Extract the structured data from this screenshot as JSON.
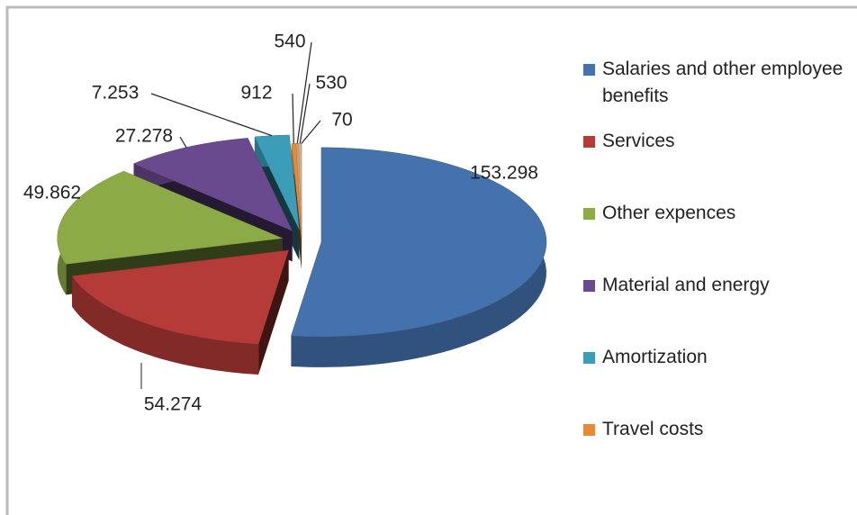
{
  "chart_data": {
    "type": "pie",
    "categories": [
      "Salaries and other employee benefits",
      "Services",
      "Other expences",
      "Material and energy",
      "Amortization",
      "Travel costs",
      null,
      null,
      null
    ],
    "values": [
      153298,
      54274,
      49862,
      27278,
      7253,
      912,
      540,
      530,
      70
    ],
    "value_labels": [
      "153.298",
      "54.274",
      "49.862",
      "27.278",
      "7.253",
      "912",
      "540",
      "530",
      "70"
    ],
    "colors": [
      "#4472ad",
      "#b43b37",
      "#8cab46",
      "#6a4a8e",
      "#3b9db8",
      "#e5893b",
      "#c9a27a",
      "#d7b58f",
      "#a37a5b"
    ],
    "legend": "right"
  }
}
